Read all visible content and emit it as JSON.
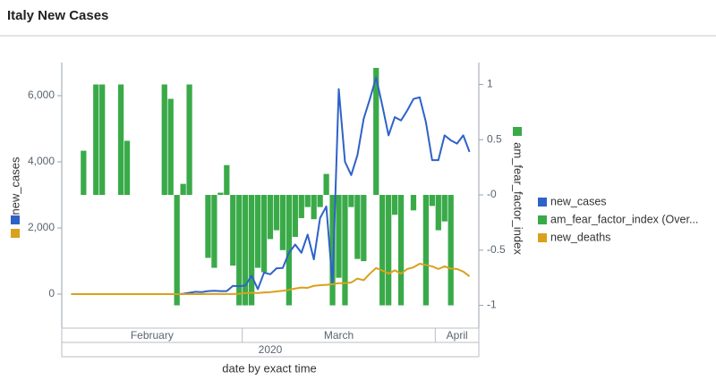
{
  "chart_data": {
    "type": "combo",
    "title": "Italy New Cases",
    "x_title": "date by exact time",
    "y_title": "new_cases",
    "y2_title": "am_fear_factor_index",
    "months": [
      {
        "label": "February",
        "days": 29
      },
      {
        "label": "March",
        "days": 31
      },
      {
        "label": "April",
        "days": 7
      }
    ],
    "year": "2020",
    "ylim": [
      -1027,
      6946
    ],
    "yticks": [
      0,
      {
        "value": 2000,
        "label": "2,000"
      },
      {
        "value": 4000,
        "label": "4,000"
      },
      {
        "value": 6000,
        "label": "6,000"
      }
    ],
    "y2lim": [
      -1.206,
      1.182
    ],
    "y2ticks": [
      -1,
      -0.5,
      {
        "value": 0,
        "label": "-0"
      },
      0.5,
      1
    ],
    "series": [
      {
        "name": "new_cases",
        "type": "line",
        "color": "#2e62c8",
        "values": [
          null,
          0,
          0,
          0,
          0,
          0,
          0,
          0,
          0,
          0,
          0,
          0,
          0,
          0,
          0,
          0,
          0,
          0,
          0,
          10,
          40,
          70,
          60,
          90,
          100,
          90,
          90,
          250,
          240,
          260,
          560,
          150,
          650,
          600,
          780,
          790,
          1250,
          1500,
          1250,
          1800,
          1050,
          2300,
          2650,
          300,
          6200,
          4000,
          3600,
          4200,
          5300,
          5900,
          6550,
          5700,
          4800,
          5350,
          5250,
          5550,
          5900,
          5950,
          5200,
          4050,
          4050,
          4800,
          4650,
          4550,
          4800,
          4300,
          null
        ]
      },
      {
        "name": "am_fear_factor_index (Over...",
        "type": "bar",
        "axis": "y2",
        "color": "#3aaa49",
        "values": [
          null,
          null,
          null,
          0.4,
          null,
          1,
          1,
          null,
          null,
          1,
          0.49,
          null,
          null,
          null,
          null,
          null,
          1,
          0.87,
          -1,
          0.1,
          1,
          null,
          null,
          -0.57,
          -0.66,
          0.02,
          0.27,
          -0.64,
          -1,
          -1,
          -1,
          -0.66,
          -0.7,
          -0.4,
          -0.32,
          -0.5,
          -1,
          -0.38,
          -0.21,
          -0.11,
          -0.22,
          -0.11,
          0.19,
          -1,
          -0.75,
          -1,
          -0.11,
          -0.58,
          -0.6,
          null,
          1.15,
          -1,
          -1,
          -0.18,
          -1,
          null,
          -0.14,
          null,
          -1,
          -0.1,
          -0.32,
          -0.24,
          -1,
          null,
          null,
          null,
          null
        ]
      },
      {
        "name": "new_deaths",
        "type": "line",
        "color": "#d9a11c",
        "values": [
          null,
          0,
          0,
          0,
          0,
          0,
          0,
          0,
          0,
          0,
          0,
          0,
          0,
          0,
          0,
          0,
          0,
          0,
          0,
          0,
          0,
          0,
          1,
          2,
          3,
          5,
          4,
          5,
          10,
          30,
          40,
          35,
          50,
          60,
          80,
          100,
          130,
          170,
          200,
          190,
          250,
          270,
          280,
          300,
          330,
          330,
          350,
          470,
          420,
          620,
          790,
          710,
          620,
          720,
          620,
          760,
          810,
          920,
          880,
          840,
          760,
          840,
          770,
          760,
          680,
          540,
          null
        ]
      }
    ]
  }
}
